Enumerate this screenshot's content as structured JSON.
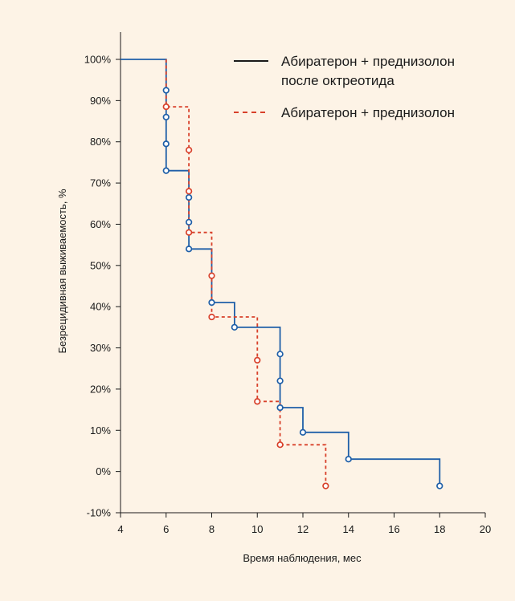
{
  "chart_data": {
    "type": "line",
    "subtype": "step-survival",
    "xlabel": "Время наблюдения, мес",
    "ylabel": "Безрецидивная выживаемость, %",
    "xlim": [
      4,
      20
    ],
    "ylim": [
      -10,
      100
    ],
    "x_ticks": [
      "4",
      "6",
      "8",
      "10",
      "12",
      "14",
      "16",
      "18",
      "20"
    ],
    "y_ticks": [
      "-10%",
      "0%",
      "10%",
      "20%",
      "30%",
      "40%",
      "50%",
      "60%",
      "70%",
      "80%",
      "90%",
      "100%"
    ],
    "grid": false,
    "legend_position": "top-right",
    "series": [
      {
        "name": "Абиратерон + преднизолон после октреотида",
        "legend_lines": [
          "Абиратерон + преднизолон",
          "после октреотида"
        ],
        "color": "#1f5fa8",
        "line_style": "solid",
        "x": [
          4,
          6,
          6,
          7,
          7,
          8,
          8,
          9,
          9,
          11,
          11,
          12,
          12,
          14,
          14,
          18,
          18
        ],
        "y": [
          100,
          100,
          73,
          73,
          54,
          54,
          41,
          41,
          35,
          35,
          15.5,
          15.5,
          9.5,
          9.5,
          3,
          3,
          -3.5
        ],
        "markers": [
          [
            6,
            92.5
          ],
          [
            6,
            86
          ],
          [
            6,
            79.5
          ],
          [
            6,
            73
          ],
          [
            7,
            66.5
          ],
          [
            7,
            60.5
          ],
          [
            7,
            54
          ],
          [
            8,
            41
          ],
          [
            9,
            35
          ],
          [
            11,
            28.5
          ],
          [
            11,
            22
          ],
          [
            11,
            15.5
          ],
          [
            12,
            9.5
          ],
          [
            14,
            3
          ],
          [
            18,
            -3.5
          ]
        ]
      },
      {
        "name": "Абиратерон + преднизолон",
        "legend_lines": [
          "Абиратерон + преднизолон"
        ],
        "color": "#d8402a",
        "line_style": "dashed",
        "x": [
          6,
          6,
          7,
          7,
          8,
          8,
          10,
          10,
          11,
          11,
          13,
          13
        ],
        "y": [
          100,
          88.5,
          88.5,
          58,
          58,
          37.5,
          37.5,
          17,
          17,
          6.5,
          6.5,
          -3.5
        ],
        "markers": [
          [
            6,
            88.5
          ],
          [
            7,
            78
          ],
          [
            7,
            68
          ],
          [
            7,
            58
          ],
          [
            8,
            47.5
          ],
          [
            8,
            37.5
          ],
          [
            10,
            27
          ],
          [
            10,
            17
          ],
          [
            11,
            6.5
          ],
          [
            13,
            -3.5
          ]
        ]
      }
    ]
  }
}
